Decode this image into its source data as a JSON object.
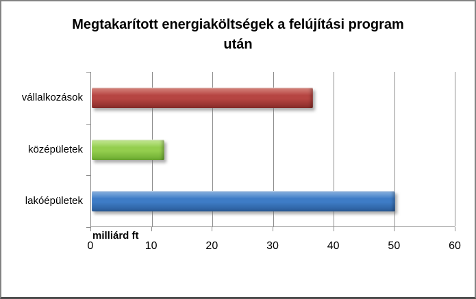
{
  "window": {
    "background": "#ffffff",
    "border_color": "#828282"
  },
  "chart_data": {
    "type": "bar",
    "orientation": "horizontal",
    "title": "Megtakarított energiaköltségek a felújítási program után",
    "title_lines": [
      "Megtakarított energiaköltségek a felújítási program",
      "után"
    ],
    "categories": [
      "vállalkozások",
      "középületek",
      "lakóépületek"
    ],
    "values": [
      36.5,
      12,
      50
    ],
    "xlabel": "milliárd ft",
    "xlim": [
      0,
      60
    ],
    "xticks": [
      0,
      10,
      20,
      30,
      40,
      50,
      60
    ],
    "grid": "vertical-gridlines",
    "legend": "none",
    "bar_colors": [
      {
        "name": "red",
        "light": "#D88880",
        "base": "#B64542",
        "dark": "#8C2E2B"
      },
      {
        "name": "green",
        "light": "#C8EA9A",
        "base": "#94CE4E",
        "dark": "#6FAE33"
      },
      {
        "name": "blue",
        "light": "#8FB6E2",
        "base": "#3E7CC6",
        "dark": "#2B5E9C"
      }
    ],
    "gridline_color": "#8C8C8C",
    "text_color": "#000000"
  }
}
